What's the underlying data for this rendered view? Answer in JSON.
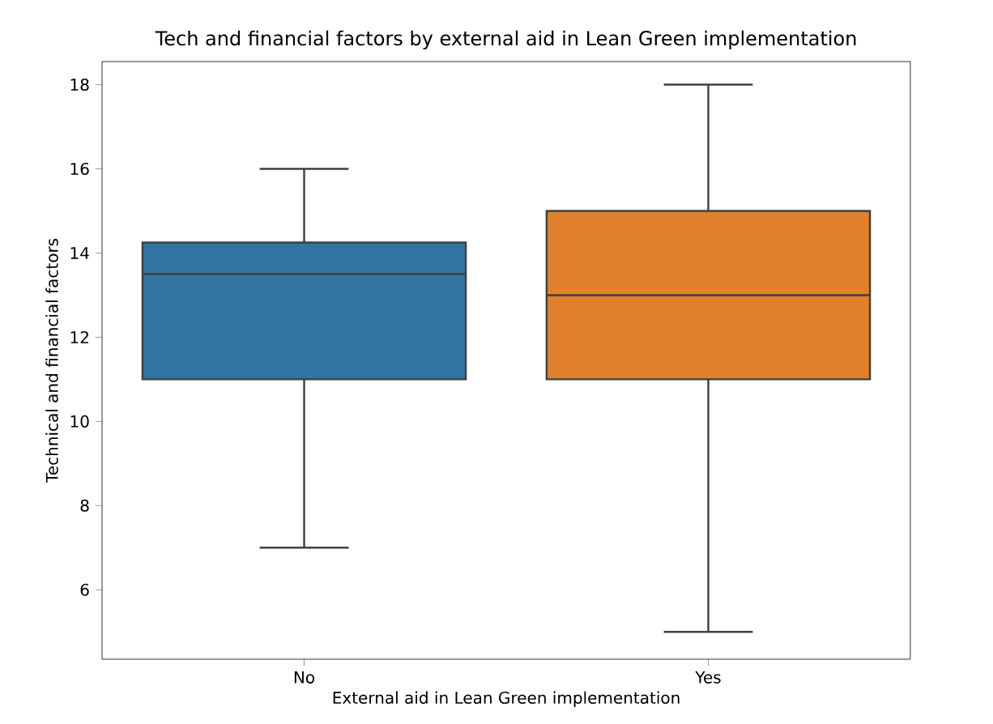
{
  "chart_data": {
    "type": "box",
    "title": "Tech and financial factors by external aid in Lean Green implementation",
    "xlabel": "External aid in Lean Green implementation",
    "ylabel": "Technical and financial factors",
    "categories": [
      "No",
      "Yes"
    ],
    "colors": [
      "#3274a1",
      "#e1812c"
    ],
    "boxes": [
      {
        "low": 7,
        "q1": 11,
        "median": 13.5,
        "q3": 14.25,
        "high": 16
      },
      {
        "low": 5,
        "q1": 11,
        "median": 13,
        "q3": 15,
        "high": 18
      }
    ],
    "ylim": [
      4.35,
      18.55
    ],
    "yticks": [
      6,
      8,
      10,
      12,
      14,
      16,
      18
    ]
  }
}
